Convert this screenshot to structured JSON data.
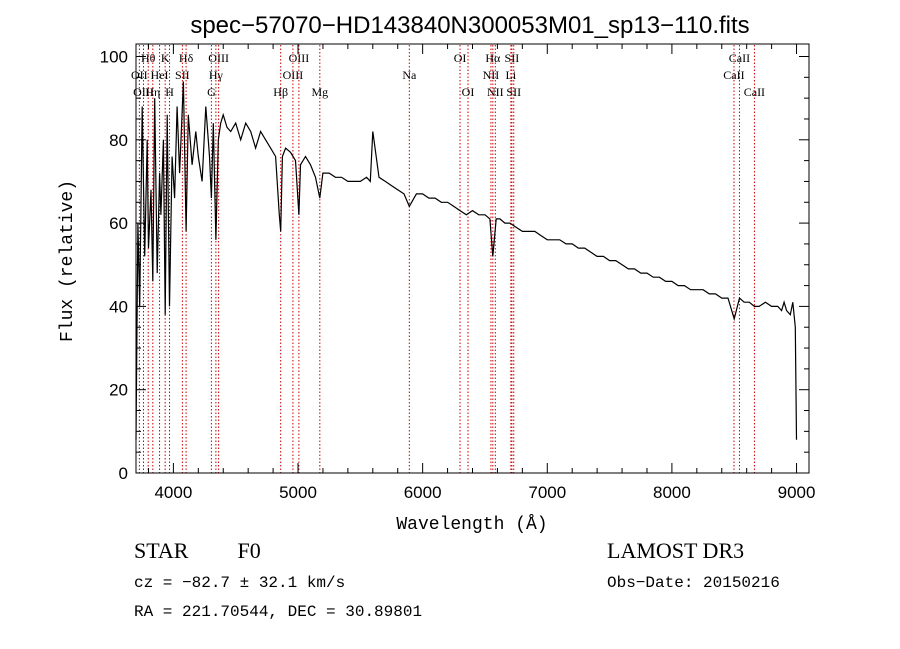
{
  "chart_data": {
    "type": "line",
    "title": "spec−57070−HD143840N300053M01_sp13−110.fits",
    "xlabel": "Wavelength (Å)",
    "ylabel": "Flux (relative)",
    "xlim": [
      3700,
      9100
    ],
    "ylim": [
      0,
      103
    ],
    "xticks": [
      4000,
      5000,
      6000,
      7000,
      8000,
      9000
    ],
    "xtick_labels": [
      "4000",
      "5000",
      "6000",
      "7000",
      "8000",
      "9000"
    ],
    "yticks": [
      0,
      20,
      40,
      60,
      80,
      100
    ],
    "ytick_labels": [
      "0",
      "20",
      "40",
      "60",
      "80",
      "100"
    ],
    "colors": {
      "spectrum": "#000000",
      "lines": "#cc0000"
    },
    "spectral_lines": [
      {
        "name": "OII",
        "wavelength": 3727,
        "row": 1
      },
      {
        "name": "OIII",
        "wavelength": 3760,
        "row": 2
      },
      {
        "name": "Hθ",
        "wavelength": 3798,
        "row": 0
      },
      {
        "name": "Hη",
        "wavelength": 3835,
        "row": 2
      },
      {
        "name": "HeI",
        "wavelength": 3889,
        "row": 1
      },
      {
        "name": "K",
        "wavelength": 3934,
        "row": 0
      },
      {
        "name": "H",
        "wavelength": 3969,
        "row": 2
      },
      {
        "name": "SII",
        "wavelength": 4072,
        "row": 1
      },
      {
        "name": "Hδ",
        "wavelength": 4102,
        "row": 0
      },
      {
        "name": "G",
        "wavelength": 4305,
        "row": 2
      },
      {
        "name": "Hγ",
        "wavelength": 4341,
        "row": 1
      },
      {
        "name": "OIII",
        "wavelength": 4363,
        "row": 0
      },
      {
        "name": "Hβ",
        "wavelength": 4861,
        "row": 2
      },
      {
        "name": "OIII",
        "wavelength": 4959,
        "row": 1
      },
      {
        "name": "OIII",
        "wavelength": 5007,
        "row": 0
      },
      {
        "name": "Mg",
        "wavelength": 5175,
        "row": 2
      },
      {
        "name": "Na",
        "wavelength": 5893,
        "row": 1
      },
      {
        "name": "OI",
        "wavelength": 6300,
        "row": 0
      },
      {
        "name": "OI",
        "wavelength": 6364,
        "row": 2
      },
      {
        "name": "NII",
        "wavelength": 6548,
        "row": 1
      },
      {
        "name": "Hα",
        "wavelength": 6563,
        "row": 0
      },
      {
        "name": "NII",
        "wavelength": 6583,
        "row": 2
      },
      {
        "name": "Li",
        "wavelength": 6708,
        "row": 1
      },
      {
        "name": "SII",
        "wavelength": 6716,
        "row": 0
      },
      {
        "name": "SII",
        "wavelength": 6731,
        "row": 2
      },
      {
        "name": "CaII",
        "wavelength": 8498,
        "row": 1
      },
      {
        "name": "CaII",
        "wavelength": 8542,
        "row": 0
      },
      {
        "name": "CaII",
        "wavelength": 8662,
        "row": 2
      }
    ],
    "spectrum": {
      "wavelength": [
        3700,
        3715,
        3730,
        3750,
        3770,
        3790,
        3800,
        3820,
        3835,
        3850,
        3870,
        3889,
        3900,
        3920,
        3934,
        3950,
        3969,
        3990,
        4010,
        4030,
        4050,
        4080,
        4102,
        4120,
        4150,
        4180,
        4200,
        4230,
        4260,
        4290,
        4305,
        4320,
        4341,
        4360,
        4380,
        4400,
        4430,
        4460,
        4500,
        4540,
        4580,
        4620,
        4660,
        4700,
        4740,
        4780,
        4820,
        4850,
        4861,
        4875,
        4900,
        4940,
        4980,
        5007,
        5020,
        5060,
        5100,
        5140,
        5175,
        5200,
        5250,
        5300,
        5350,
        5400,
        5450,
        5500,
        5550,
        5580,
        5600,
        5650,
        5700,
        5750,
        5800,
        5850,
        5893,
        5950,
        6000,
        6050,
        6100,
        6150,
        6200,
        6250,
        6300,
        6350,
        6400,
        6450,
        6500,
        6540,
        6563,
        6590,
        6620,
        6660,
        6700,
        6750,
        6800,
        6850,
        6900,
        6950,
        7000,
        7050,
        7100,
        7150,
        7200,
        7250,
        7300,
        7350,
        7400,
        7450,
        7500,
        7550,
        7600,
        7650,
        7700,
        7750,
        7800,
        7850,
        7900,
        7950,
        8000,
        8050,
        8100,
        8150,
        8200,
        8250,
        8300,
        8350,
        8400,
        8450,
        8500,
        8542,
        8580,
        8620,
        8662,
        8700,
        8750,
        8800,
        8850,
        8880,
        8900,
        8920,
        8950,
        8970,
        8990,
        9000
      ],
      "flux": [
        8,
        60,
        40,
        88,
        52,
        80,
        54,
        68,
        46,
        90,
        48,
        72,
        62,
        80,
        38,
        86,
        40,
        76,
        66,
        88,
        72,
        94,
        58,
        86,
        74,
        82,
        76,
        70,
        88,
        76,
        66,
        84,
        56,
        80,
        84,
        86,
        83,
        82,
        84,
        80,
        84,
        82,
        78,
        82,
        80,
        78,
        76,
        62,
        58,
        76,
        78,
        77,
        75,
        62,
        74,
        76,
        74,
        71,
        66,
        72,
        72,
        71,
        71,
        70,
        70,
        70,
        71,
        70,
        82,
        71,
        70,
        69,
        68,
        67,
        64,
        67,
        67,
        66,
        66,
        65,
        65,
        64,
        63,
        62,
        63,
        62,
        62,
        61,
        52,
        61,
        61,
        60,
        60,
        59,
        58,
        58,
        58,
        57,
        56,
        56,
        56,
        55,
        55,
        54,
        54,
        53,
        52,
        52,
        51,
        51,
        50,
        49,
        49,
        48,
        48,
        47,
        47,
        46,
        46,
        45,
        45,
        44,
        44,
        44,
        43,
        43,
        42,
        42,
        37,
        42,
        41,
        41,
        40,
        40,
        41,
        40,
        40,
        39,
        41,
        39,
        38,
        41,
        35,
        8
      ]
    }
  },
  "info": {
    "object_class": "STAR",
    "subclass": "F0",
    "survey": "LAMOST DR3",
    "cz": "cz = −82.7 ± 32.1 km/s",
    "obs_date": "Obs−Date: 20150216",
    "radec": "RA = 221.70544, DEC =  30.89801"
  }
}
